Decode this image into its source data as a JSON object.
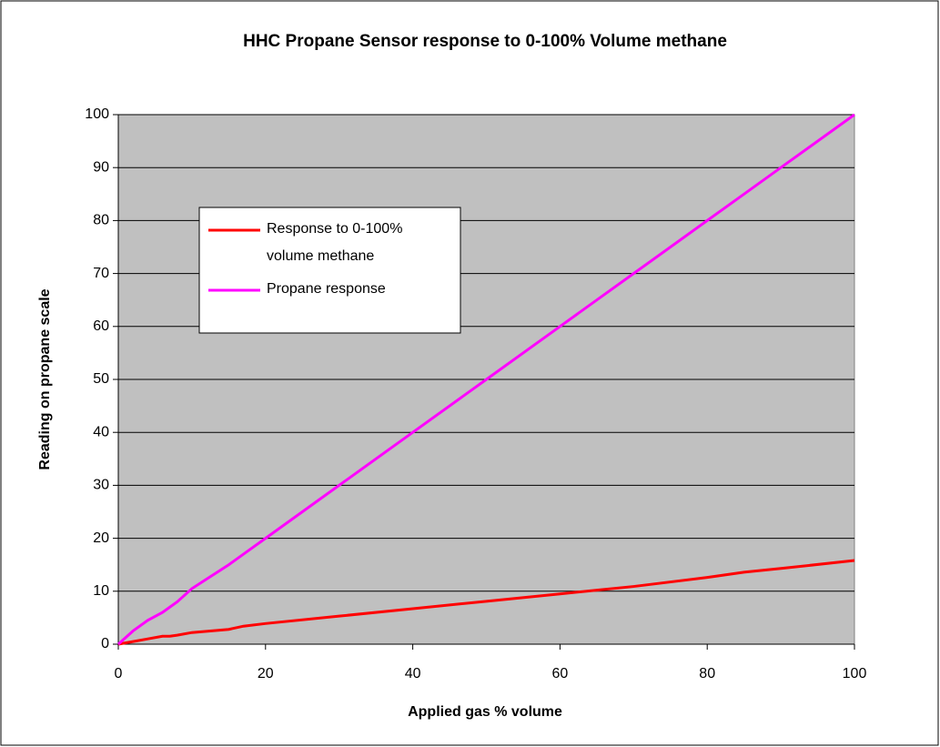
{
  "chart_data": {
    "type": "line",
    "title": "HHC Propane Sensor response to 0-100% Volume methane",
    "xlabel": "Applied gas % volume",
    "ylabel": "Reading on propane scale",
    "x": [
      0,
      2,
      4,
      6,
      7,
      8,
      10,
      15,
      17,
      20,
      30,
      40,
      50,
      60,
      65,
      70,
      80,
      85,
      90,
      100
    ],
    "series": [
      {
        "name": "Response to 0-100% volume methane",
        "color": "#ff0000",
        "values": [
          0,
          0.5,
          1,
          1.5,
          1.5,
          1.7,
          2.2,
          2.8,
          3.4,
          3.9,
          5.3,
          6.7,
          8.1,
          9.5,
          10.2,
          10.9,
          12.6,
          13.6,
          14.3,
          15.8
        ]
      },
      {
        "name": "Propane response",
        "color": "#ff00ff",
        "values": [
          0,
          2.5,
          4.5,
          6,
          7,
          8,
          10.5,
          15,
          17,
          20,
          30,
          40,
          50,
          60,
          65,
          70,
          80,
          85,
          90,
          100
        ]
      }
    ],
    "xlim": [
      0,
      100
    ],
    "xticks": [
      0,
      20,
      40,
      60,
      80,
      100
    ],
    "ylim": [
      0,
      100
    ],
    "yticks": [
      0,
      10,
      20,
      30,
      40,
      50,
      60,
      70,
      80,
      90,
      100
    ],
    "grid": true,
    "background": "#c0c0c0"
  }
}
